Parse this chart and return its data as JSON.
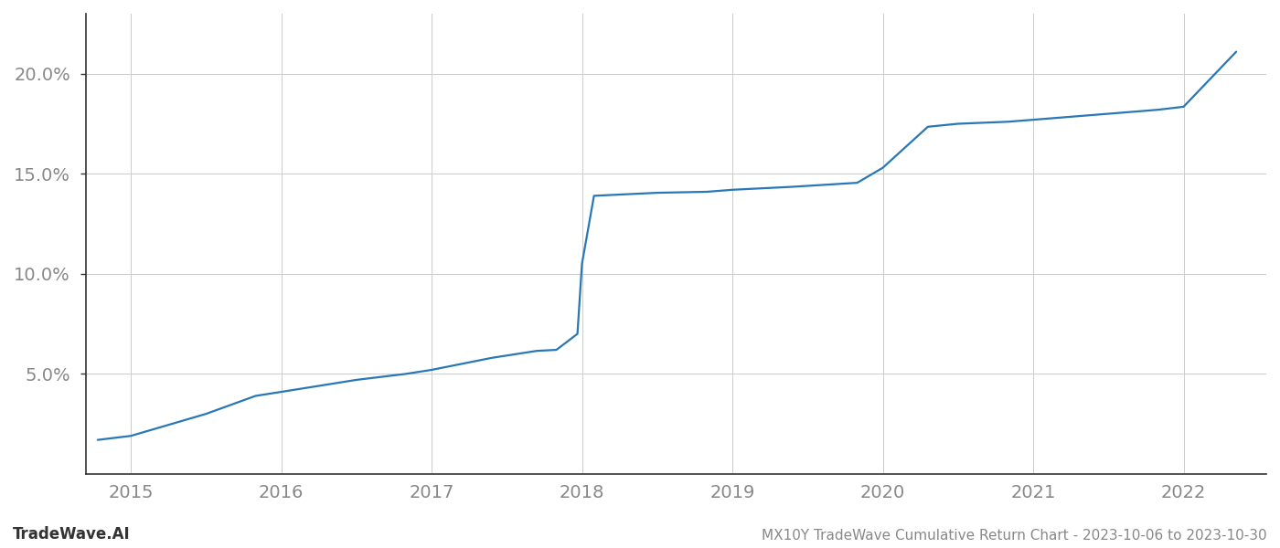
{
  "title": "MX10Y TradeWave Cumulative Return Chart - 2023-10-06 to 2023-10-30",
  "watermark": "TradeWave.AI",
  "line_color": "#2878b8",
  "line_width": 1.6,
  "background_color": "#ffffff",
  "grid_color": "#cccccc",
  "x_values": [
    2014.78,
    2015.0,
    2015.5,
    2015.83,
    2016.0,
    2016.5,
    2016.83,
    2017.0,
    2017.4,
    2017.7,
    2017.83,
    2017.97,
    2018.0,
    2018.08,
    2018.5,
    2018.83,
    2019.0,
    2019.4,
    2019.83,
    2020.0,
    2020.3,
    2020.5,
    2020.83,
    2021.0,
    2021.5,
    2021.83,
    2022.0,
    2022.35
  ],
  "y_values": [
    1.7,
    1.9,
    3.0,
    3.9,
    4.1,
    4.7,
    5.0,
    5.2,
    5.8,
    6.15,
    6.2,
    7.0,
    10.5,
    13.9,
    14.05,
    14.1,
    14.2,
    14.35,
    14.55,
    15.3,
    17.35,
    17.5,
    17.6,
    17.7,
    18.0,
    18.2,
    18.35,
    21.1
  ],
  "yticks": [
    5.0,
    10.0,
    15.0,
    20.0
  ],
  "ytick_labels": [
    "5.0%",
    "10.0%",
    "15.0%",
    "20.0%"
  ],
  "xtick_years": [
    2015,
    2016,
    2017,
    2018,
    2019,
    2020,
    2021,
    2022
  ],
  "xlim": [
    2014.7,
    2022.55
  ],
  "ylim": [
    0.0,
    23.0
  ]
}
